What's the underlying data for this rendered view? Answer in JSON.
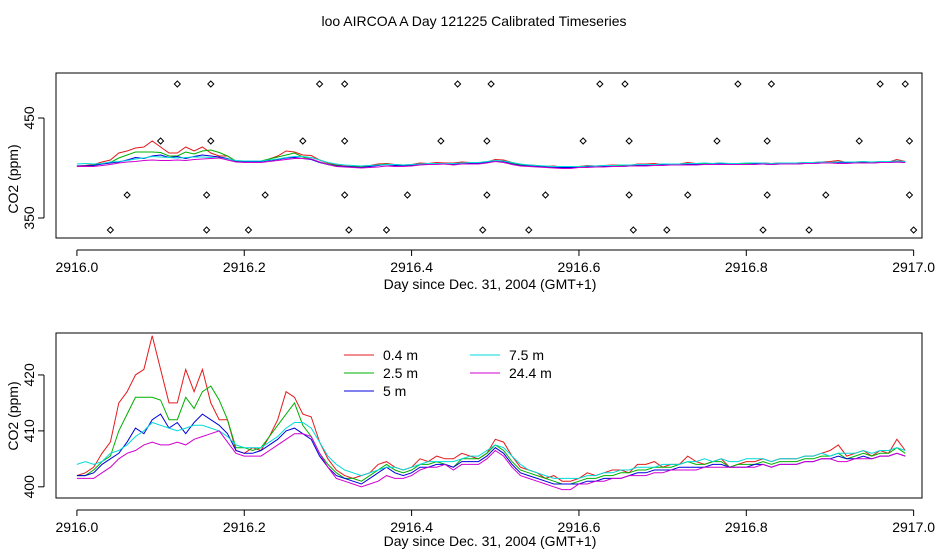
{
  "title": "loo AIRCOA A  Day 121225  Calibrated Timeseries",
  "colors": {
    "red": "#e41a1c",
    "green": "#00b000",
    "blue": "#0000dd",
    "cyan": "#00dada",
    "magenta": "#d000d0",
    "ink": "#000000"
  },
  "chart_data": [
    {
      "type": "line+scatter",
      "title": "",
      "xlabel": "Day since Dec. 31, 2004 (GMT+1)",
      "ylabel": "CO2 (ppm)",
      "xlim": [
        2915.975,
        2917.01
      ],
      "ylim": [
        330,
        495
      ],
      "xticks": [
        "2916.0",
        "2916.2",
        "2916.4",
        "2916.6",
        "2916.8",
        "2917.0"
      ],
      "xtick_values": [
        2916.0,
        2916.2,
        2916.4,
        2916.6,
        2916.8,
        2917.0
      ],
      "yticks": [
        "350",
        "450"
      ],
      "ytick_values": [
        350,
        450
      ],
      "scatter_marker": "open-diamond",
      "scatter_points": [
        [
          2916.04,
          338
        ],
        [
          2916.06,
          373
        ],
        [
          2916.1,
          427
        ],
        [
          2916.12,
          484
        ],
        [
          2916.155,
          338
        ],
        [
          2916.155,
          373
        ],
        [
          2916.16,
          427
        ],
        [
          2916.16,
          484
        ],
        [
          2916.205,
          338
        ],
        [
          2916.225,
          373
        ],
        [
          2916.27,
          427
        ],
        [
          2916.29,
          484
        ],
        [
          2916.32,
          484
        ],
        [
          2916.32,
          427
        ],
        [
          2916.32,
          373
        ],
        [
          2916.325,
          338
        ],
        [
          2916.37,
          338
        ],
        [
          2916.395,
          373
        ],
        [
          2916.435,
          427
        ],
        [
          2916.455,
          484
        ],
        [
          2916.485,
          338
        ],
        [
          2916.49,
          373
        ],
        [
          2916.49,
          427
        ],
        [
          2916.495,
          484
        ],
        [
          2916.54,
          338
        ],
        [
          2916.56,
          373
        ],
        [
          2916.605,
          427
        ],
        [
          2916.625,
          484
        ],
        [
          2916.655,
          484
        ],
        [
          2916.66,
          427
        ],
        [
          2916.66,
          373
        ],
        [
          2916.665,
          338
        ],
        [
          2916.705,
          338
        ],
        [
          2916.73,
          373
        ],
        [
          2916.765,
          427
        ],
        [
          2916.79,
          484
        ],
        [
          2916.82,
          338
        ],
        [
          2916.825,
          427
        ],
        [
          2916.825,
          373
        ],
        [
          2916.83,
          484
        ],
        [
          2916.875,
          338
        ],
        [
          2916.895,
          373
        ],
        [
          2916.935,
          427
        ],
        [
          2916.96,
          484
        ],
        [
          2916.99,
          484
        ],
        [
          2916.995,
          427
        ],
        [
          2916.995,
          373
        ],
        [
          2917.0,
          338
        ]
      ],
      "x": [
        2916.0,
        2916.01,
        2916.02,
        2916.03,
        2916.04,
        2916.05,
        2916.06,
        2916.07,
        2916.08,
        2916.09,
        2916.1,
        2916.11,
        2916.12,
        2916.13,
        2916.14,
        2916.15,
        2916.16,
        2916.17,
        2916.18,
        2916.19,
        2916.2,
        2916.21,
        2916.22,
        2916.23,
        2916.24,
        2916.25,
        2916.26,
        2916.27,
        2916.28,
        2916.29,
        2916.3,
        2916.31,
        2916.32,
        2916.33,
        2916.34,
        2916.35,
        2916.36,
        2916.37,
        2916.38,
        2916.39,
        2916.4,
        2916.41,
        2916.42,
        2916.43,
        2916.44,
        2916.45,
        2916.46,
        2916.47,
        2916.48,
        2916.49,
        2916.5,
        2916.51,
        2916.52,
        2916.53,
        2916.54,
        2916.55,
        2916.56,
        2916.57,
        2916.58,
        2916.59,
        2916.6,
        2916.61,
        2916.62,
        2916.63,
        2916.64,
        2916.65,
        2916.66,
        2916.67,
        2916.68,
        2916.69,
        2916.7,
        2916.71,
        2916.72,
        2916.73,
        2916.74,
        2916.75,
        2916.76,
        2916.77,
        2916.78,
        2916.79,
        2916.8,
        2916.81,
        2916.82,
        2916.83,
        2916.84,
        2916.85,
        2916.86,
        2916.87,
        2916.88,
        2916.89,
        2916.9,
        2916.91,
        2916.92,
        2916.93,
        2916.94,
        2916.95,
        2916.96,
        2916.97,
        2916.98,
        2916.99
      ],
      "series": [
        {
          "color": "red",
          "values": [
            402,
            402.5,
            403.5,
            406,
            408,
            415,
            417,
            420,
            421,
            427,
            421,
            415,
            415,
            421,
            417,
            421,
            415,
            412,
            412,
            406.5,
            406,
            407,
            406.5,
            409,
            412,
            417,
            416,
            413,
            412.5,
            408,
            405,
            403,
            402,
            401.5,
            402,
            402.5,
            404,
            404.5,
            403.5,
            403,
            403.5,
            405,
            404.5,
            405.5,
            405,
            405,
            406,
            405.5,
            405,
            406,
            408.5,
            408,
            405.5,
            403.5,
            403,
            402.5,
            401.5,
            402,
            401,
            401,
            401.5,
            402.5,
            402,
            402.5,
            403,
            403,
            402.5,
            404,
            404,
            404.5,
            403.5,
            404,
            404,
            405.5,
            404.5,
            404,
            404.5,
            405,
            403.5,
            404,
            404.5,
            404.5,
            405,
            404.5,
            405,
            405,
            405,
            405.5,
            405.5,
            406,
            406.5,
            407.5,
            405.5,
            406,
            406.5,
            405.5,
            406.5,
            406,
            408.5,
            406.5
          ]
        },
        {
          "color": "green",
          "values": [
            402,
            402,
            403,
            404.5,
            405.5,
            410,
            413,
            416,
            416,
            416,
            415.5,
            412,
            412,
            416,
            414,
            417,
            418,
            415.5,
            412,
            407,
            407,
            406.5,
            407,
            409,
            411,
            413,
            415,
            411,
            409,
            406,
            404,
            402.5,
            401.5,
            401.5,
            401,
            402,
            403,
            404,
            403,
            402.5,
            403,
            404,
            404,
            404.5,
            404,
            403.5,
            405,
            405,
            405,
            406,
            407.5,
            406.5,
            404.5,
            403,
            402.5,
            402,
            401.5,
            401,
            400.5,
            400.5,
            401,
            401.5,
            401.5,
            402,
            402,
            402.5,
            402.5,
            403,
            403,
            403.5,
            403.5,
            403.5,
            404,
            404.5,
            404,
            404,
            404.5,
            404.5,
            403.5,
            404,
            404,
            404,
            404.5,
            404,
            404.5,
            404.5,
            404.5,
            405,
            405,
            405.5,
            405.5,
            406,
            405,
            405.5,
            406,
            405.5,
            406,
            406,
            407,
            406
          ]
        },
        {
          "color": "blue",
          "values": [
            402,
            402,
            402.5,
            404,
            405,
            406,
            408,
            410.5,
            409.5,
            412,
            413,
            410.5,
            411.5,
            409.5,
            411.5,
            413,
            412,
            411,
            409.5,
            406.5,
            406,
            406,
            406.5,
            407.5,
            408.5,
            410,
            410.5,
            409.5,
            408.5,
            405.5,
            403.5,
            402,
            401.5,
            401,
            400.5,
            401.5,
            402.5,
            403.5,
            402.5,
            402,
            402.5,
            403.5,
            403.5,
            404,
            404,
            403.5,
            404.5,
            404.5,
            404.5,
            405.5,
            407,
            406,
            404,
            402.5,
            402,
            401.5,
            401,
            400.5,
            400.5,
            400.5,
            400.5,
            401,
            401,
            401.5,
            401.5,
            401.5,
            402,
            402.5,
            402.5,
            403,
            403,
            403,
            403.5,
            403.5,
            403.5,
            403.5,
            404,
            404,
            403.5,
            403.5,
            403.5,
            404,
            404,
            403.5,
            404,
            404,
            404,
            404.5,
            404.5,
            405,
            405,
            405.5,
            405,
            405,
            405.5,
            405,
            405.5,
            405.5,
            406,
            405.5
          ]
        },
        {
          "color": "cyan",
          "values": [
            404,
            404.5,
            404,
            404.5,
            406,
            406.5,
            407.5,
            409,
            410,
            411.5,
            411,
            410.5,
            410,
            410.5,
            411,
            411,
            410.5,
            410,
            409,
            407.5,
            407,
            407,
            407,
            408,
            409,
            410.5,
            411.5,
            411.5,
            410.5,
            408,
            405.5,
            404,
            403,
            402.5,
            402,
            402.5,
            403,
            403.5,
            403.5,
            403,
            403.5,
            404,
            404.5,
            404.5,
            404.5,
            404.5,
            405,
            405.5,
            405.5,
            406.5,
            407.5,
            407,
            405.5,
            404,
            403,
            402.5,
            402,
            401.5,
            401.5,
            401.5,
            401.5,
            402,
            402,
            402.5,
            402.5,
            403,
            403,
            403.5,
            403.5,
            403.5,
            404,
            404,
            404,
            404.5,
            404.5,
            405,
            404.5,
            405,
            404.5,
            404.5,
            405,
            405,
            405,
            404.5,
            405,
            405,
            405,
            405.5,
            405.5,
            406,
            405.5,
            406,
            406,
            406,
            406.5,
            406,
            406.5,
            406.5,
            407,
            406.5
          ]
        },
        {
          "color": "magenta",
          "values": [
            401.5,
            401.5,
            401.5,
            402.5,
            403.5,
            405,
            406,
            406.5,
            407.5,
            408,
            407.5,
            407.5,
            408,
            407.5,
            408.5,
            409,
            409.5,
            410,
            408,
            406,
            405.5,
            405.5,
            405.5,
            406.5,
            407.5,
            408.5,
            409.5,
            409.5,
            409,
            406,
            403.5,
            401.5,
            401,
            400.5,
            400,
            400.5,
            401,
            402,
            401.5,
            401.5,
            402,
            403,
            403.5,
            403.5,
            404,
            403,
            404,
            404,
            404,
            405,
            406.5,
            405.5,
            403.5,
            402,
            401.5,
            401,
            400.5,
            400,
            399.5,
            399.5,
            400.5,
            400.5,
            401,
            401,
            401.5,
            401.5,
            402,
            402,
            402,
            402.5,
            402.5,
            403,
            403,
            403,
            403,
            403.5,
            403.5,
            403.5,
            403.5,
            403.5,
            403.5,
            403.5,
            404,
            403.5,
            404,
            404,
            404,
            404.5,
            404.5,
            405,
            405,
            404.5,
            404.5,
            405,
            405,
            405,
            405.5,
            405.5,
            406,
            405.5
          ]
        }
      ]
    },
    {
      "type": "line",
      "title": "",
      "xlabel": "Day since Dec. 31, 2004 (GMT+1)",
      "ylabel": "CO2 (ppm)",
      "xlim": [
        2915.975,
        2917.01
      ],
      "ylim": [
        398,
        427.5
      ],
      "xticks": [
        "2916.0",
        "2916.2",
        "2916.4",
        "2916.6",
        "2916.8",
        "2917.0"
      ],
      "xtick_values": [
        2916.0,
        2916.2,
        2916.4,
        2916.6,
        2916.8,
        2917.0
      ],
      "yticks": [
        "400",
        "410",
        "420"
      ],
      "ytick_values": [
        400,
        410,
        420
      ],
      "legend_position": "top-center",
      "legend": [
        {
          "label": "0.4 m",
          "color": "red"
        },
        {
          "label": "2.5 m",
          "color": "green"
        },
        {
          "label": "5 m",
          "color": "blue"
        },
        {
          "label": "7.5 m",
          "color": "cyan"
        },
        {
          "label": "24.4 m",
          "color": "magenta"
        }
      ],
      "series_from_panel": 0
    }
  ]
}
